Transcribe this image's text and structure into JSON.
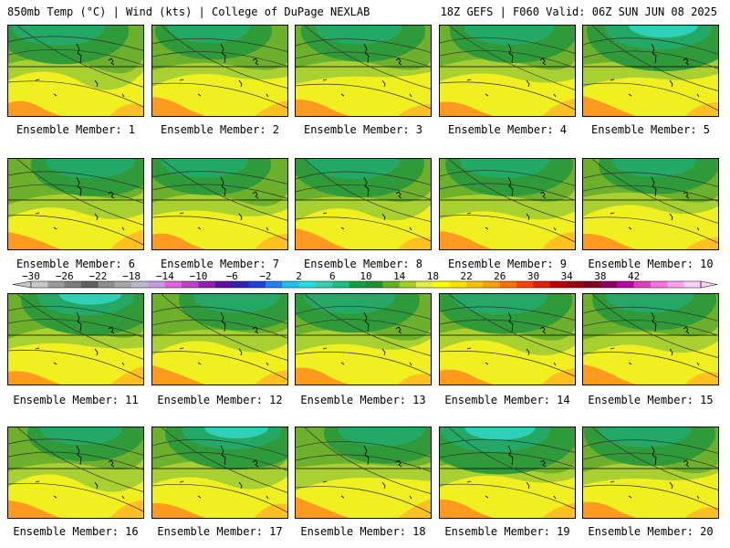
{
  "header": {
    "left": "850mb Temp (°C) | Wind (kts) | College of DuPage NEXLAB",
    "right": "18Z GEFS | F060 Valid: 06Z SUN JUN 08 2025"
  },
  "label_prefix": "Ensemble Member: ",
  "members": [
    {
      "label": "Ensemble Member: 1",
      "cold": 0.55
    },
    {
      "label": "Ensemble Member: 2",
      "cold": 0.35
    },
    {
      "label": "Ensemble Member: 3",
      "cold": 0.45
    },
    {
      "label": "Ensemble Member: 4",
      "cold": 0.5
    },
    {
      "label": "Ensemble Member: 5",
      "cold": 0.85
    },
    {
      "label": "Ensemble Member: 6",
      "cold": 0.5
    },
    {
      "label": "Ensemble Member: 7",
      "cold": 0.45
    },
    {
      "label": "Ensemble Member: 8",
      "cold": 0.55
    },
    {
      "label": "Ensemble Member: 9",
      "cold": 0.5
    },
    {
      "label": "Ensemble Member: 10",
      "cold": 0.4
    },
    {
      "label": "Ensemble Member: 11",
      "cold": 0.65
    },
    {
      "label": "Ensemble Member: 12",
      "cold": 0.45
    },
    {
      "label": "Ensemble Member: 13",
      "cold": 0.55
    },
    {
      "label": "Ensemble Member: 14",
      "cold": 0.6
    },
    {
      "label": "Ensemble Member: 15",
      "cold": 0.45
    },
    {
      "label": "Ensemble Member: 16",
      "cold": 0.35
    },
    {
      "label": "Ensemble Member: 17",
      "cold": 0.7
    },
    {
      "label": "Ensemble Member: 18",
      "cold": 0.45
    },
    {
      "label": "Ensemble Member: 19",
      "cold": 0.9
    },
    {
      "label": "Ensemble Member: 20",
      "cold": 0.55
    }
  ],
  "colorbar": {
    "ticks": [
      "−30",
      "−26",
      "−22",
      "−18",
      "−14",
      "−10",
      "−6",
      "−2",
      "2",
      "6",
      "10",
      "14",
      "18",
      "22",
      "26",
      "30",
      "34",
      "38",
      "42"
    ],
    "colors": [
      "#c8c8c8",
      "#9a9a9a",
      "#7c7c7c",
      "#606060",
      "#8e8e8e",
      "#a6a6a6",
      "#b8b8cc",
      "#c89ae0",
      "#e060e0",
      "#c040c0",
      "#9020b0",
      "#6010a0",
      "#3020c0",
      "#2040e0",
      "#2080f0",
      "#20c0f0",
      "#20e0e0",
      "#30d0b0",
      "#20c080",
      "#10a040",
      "#209030",
      "#60b020",
      "#a0d020",
      "#e0f040",
      "#ffff00",
      "#ffe000",
      "#ffc000",
      "#ffa000",
      "#ff7000",
      "#ff4000",
      "#e02000",
      "#c00000",
      "#a00010",
      "#800020",
      "#900060",
      "#c000a0",
      "#e040c0",
      "#ff70e0",
      "#ffa0f0",
      "#ffd0f8"
    ]
  }
}
